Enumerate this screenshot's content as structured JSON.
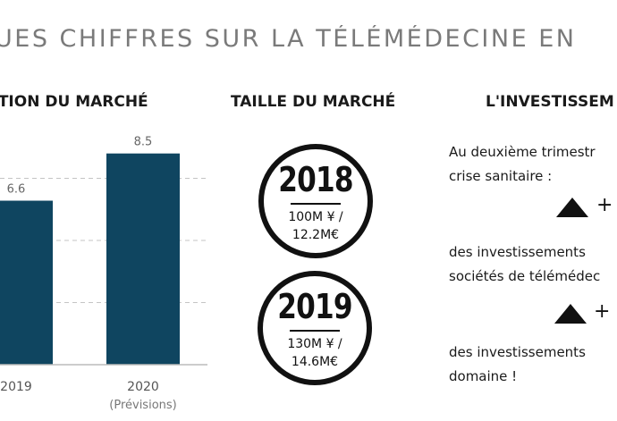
{
  "header": {
    "title": "UES CHIFFRES SUR LA TÉLÉMÉDECINE EN"
  },
  "sections": {
    "evolution": "ATION DU MARCHÉ",
    "taille": "TAILLE DU MARCHÉ",
    "invest": "L'INVESTISSEM"
  },
  "chart_data": {
    "type": "bar",
    "title": "",
    "categories": [
      "2019",
      "2020"
    ],
    "category_sublabels": [
      "",
      "(Prévisions)"
    ],
    "values": [
      6.6,
      8.5
    ],
    "data_labels": [
      "6.6",
      "8.5"
    ],
    "ylim": [
      0,
      10
    ],
    "grid": true,
    "bar_color": "#0f4560"
  },
  "taille": [
    {
      "year": "2018",
      "amount_yen": "100M ¥ /",
      "amount_eur": "12.2M€"
    },
    {
      "year": "2019",
      "amount_yen": "130M ¥ /",
      "amount_eur": "14.6M€"
    }
  ],
  "invest": {
    "line1": "Au deuxième trimestr",
    "line2": "crise sanitaire :",
    "plus1": "+",
    "line3": "des  investissements",
    "line4": "sociétés de télémédec",
    "plus2": "+",
    "line5": "des    investissements",
    "line6": "domaine !"
  }
}
